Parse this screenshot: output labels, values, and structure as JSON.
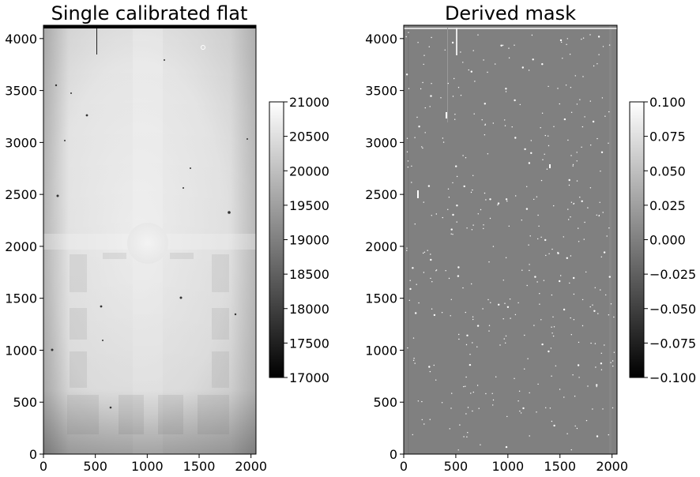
{
  "figure": {
    "left_panel": {
      "title": "Single calibrated flat",
      "xlim": [
        0,
        2048
      ],
      "ylim": [
        0,
        4128
      ],
      "xticks": [
        0,
        500,
        1000,
        1500,
        2000
      ],
      "yticks": [
        0,
        500,
        1000,
        1500,
        2000,
        2500,
        3000,
        3500,
        4000
      ],
      "colorbar": {
        "vmin": 17000,
        "vmax": 21000,
        "ticks": [
          17000,
          17500,
          18000,
          18500,
          19000,
          19500,
          20000,
          20500,
          21000
        ],
        "tick_labels": [
          "17000",
          "17500",
          "18000",
          "18500",
          "19000",
          "19500",
          "20000",
          "20500",
          "21000"
        ],
        "cmap": "gray"
      }
    },
    "right_panel": {
      "title": "Derived mask",
      "xlim": [
        0,
        2048
      ],
      "ylim": [
        0,
        4128
      ],
      "xticks": [
        0,
        500,
        1000,
        1500,
        2000
      ],
      "yticks": [
        0,
        500,
        1000,
        1500,
        2000,
        2500,
        3000,
        3500,
        4000
      ],
      "colorbar": {
        "vmin": -0.1,
        "vmax": 0.1,
        "ticks": [
          -0.1,
          -0.075,
          -0.05,
          -0.025,
          0,
          0.025,
          0.05,
          0.075,
          0.1
        ],
        "tick_labels": [
          "−0.100",
          "−0.075",
          "−0.050",
          "−0.025",
          "0.000",
          "0.025",
          "0.050",
          "0.075",
          "0.100"
        ],
        "cmap": "gray"
      }
    }
  },
  "chart_data": [
    {
      "type": "heatmap",
      "title": "Single calibrated flat",
      "xlabel": "",
      "ylabel": "",
      "xlim": [
        0,
        2048
      ],
      "ylim": [
        0,
        4128
      ],
      "value_range": [
        17000,
        21000
      ],
      "colormap": "gray",
      "grid": false
    },
    {
      "type": "heatmap",
      "title": "Derived mask",
      "xlabel": "",
      "ylabel": "",
      "xlim": [
        0,
        2048
      ],
      "ylim": [
        0,
        4128
      ],
      "value_range": [
        -0.1,
        0.1
      ],
      "colormap": "gray",
      "grid": false
    }
  ]
}
